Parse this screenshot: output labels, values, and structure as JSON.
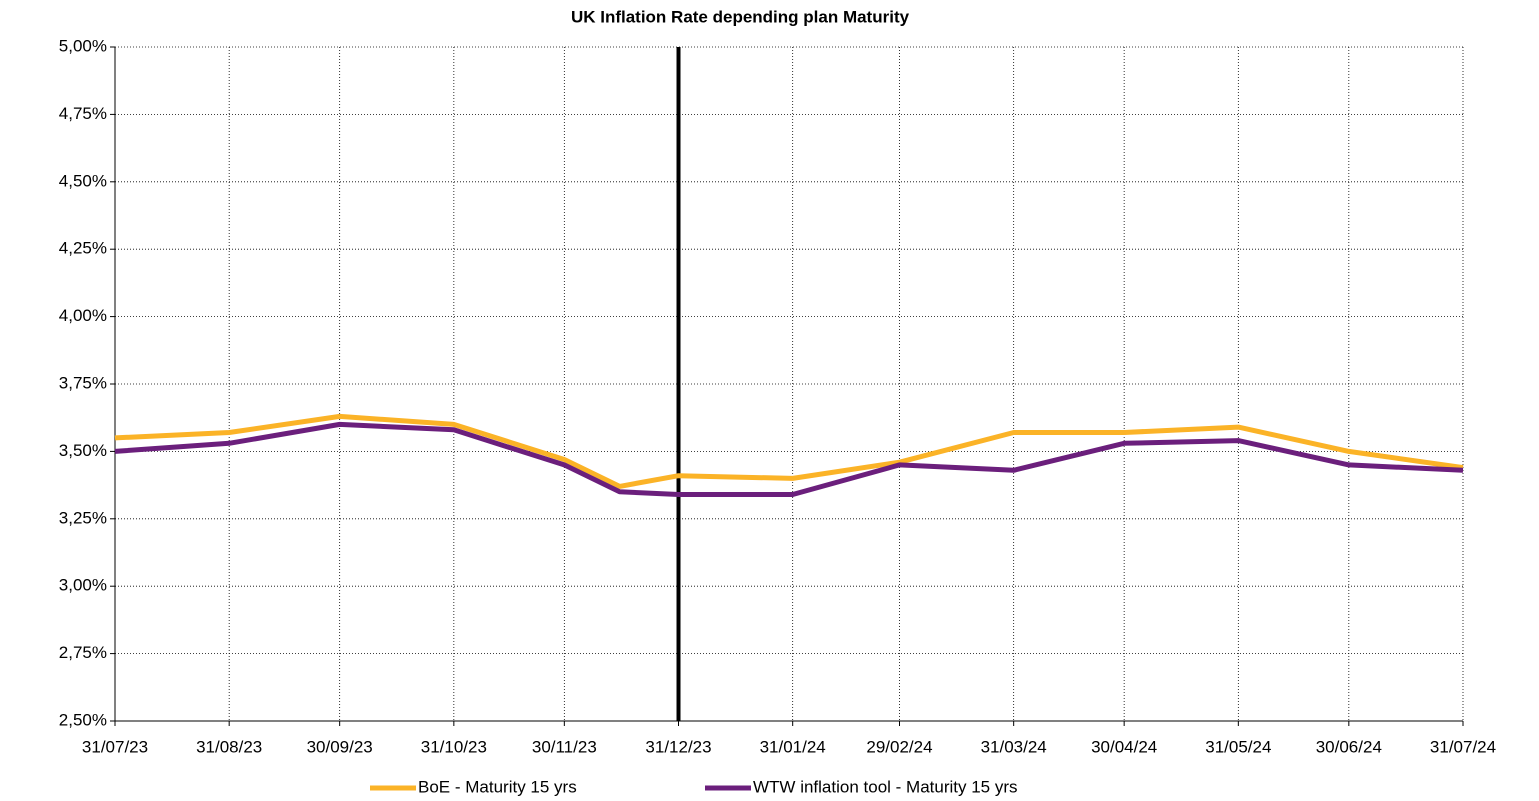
{
  "chart_data": {
    "type": "line",
    "title": "UK Inflation Rate depending plan Maturity",
    "x": [
      "31/07/23",
      "31/08/23",
      "30/09/23",
      "31/10/23",
      "30/11/23",
      "15/12/23",
      "31/12/23",
      "31/01/24",
      "29/02/24",
      "31/03/24",
      "30/04/24",
      "31/05/24",
      "30/06/24",
      "31/07/24"
    ],
    "series": [
      {
        "name": "BoE - Maturity 15 yrs",
        "color": "#FBB327",
        "values": [
          3.55,
          3.57,
          3.63,
          3.6,
          3.47,
          3.37,
          3.41,
          3.4,
          3.46,
          3.57,
          3.57,
          3.59,
          3.5,
          3.44
        ]
      },
      {
        "name": "WTW inflation tool - Maturity 15 yrs",
        "color": "#6B1F7C",
        "values": [
          3.5,
          3.53,
          3.6,
          3.58,
          3.45,
          3.35,
          3.34,
          3.34,
          3.45,
          3.43,
          3.53,
          3.54,
          3.45,
          3.43
        ]
      }
    ],
    "xlim": [
      "31/07/23",
      "31/07/24"
    ],
    "xticks": [
      "31/07/23",
      "31/08/23",
      "30/09/23",
      "31/10/23",
      "30/11/23",
      "31/12/23",
      "31/01/24",
      "29/02/24",
      "31/03/24",
      "30/04/24",
      "31/05/24",
      "30/06/24",
      "31/07/24"
    ],
    "ylim": [
      2.5,
      5
    ],
    "yticks": [
      {
        "value": 2.5,
        "label": "2,50%"
      },
      {
        "value": 2.75,
        "label": "2,75%"
      },
      {
        "value": 3,
        "label": "3,00%"
      },
      {
        "value": 3.25,
        "label": "3,25%"
      },
      {
        "value": 3.5,
        "label": "3,50%"
      },
      {
        "value": 3.75,
        "label": "3,75%"
      },
      {
        "value": 4,
        "label": "4,00%"
      },
      {
        "value": 4.25,
        "label": "4,25%"
      },
      {
        "value": 4.5,
        "label": "4,50%"
      },
      {
        "value": 4.75,
        "label": "4,75%"
      },
      {
        "value": 5,
        "label": "5,00%"
      }
    ],
    "vline": {
      "x": "31/12/23",
      "color": "#000000"
    },
    "grid": true,
    "legend": "bottom"
  }
}
